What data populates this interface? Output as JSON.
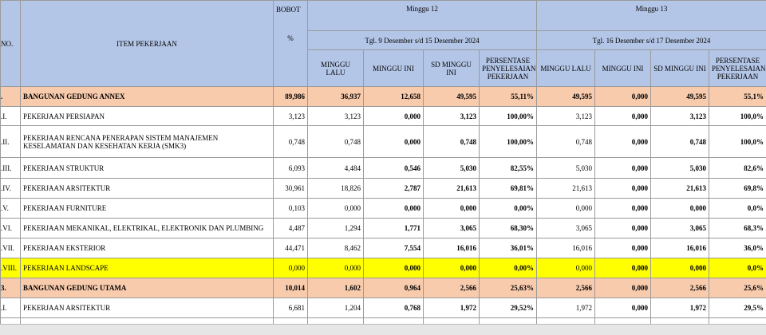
{
  "header": {
    "no": "NO.",
    "item": "ITEM PEKERJAAN",
    "bobot": "BOBOT",
    "bobot_unit": "%",
    "weeks": [
      {
        "title": "Minggu 12",
        "dates": "Tgl. 9 Desember  s/d 15 Desember 2024",
        "columns": [
          "MINGGU LALU",
          "MINGGU INI",
          "SD MINGGU INI",
          "PERSENTASE PENYELESAIAN PEKERJAAN"
        ]
      },
      {
        "title": "Minggu 13",
        "dates": "Tgl. 16 Desember  s/d 17 Desember 2024",
        "columns": [
          "MINGGU LALU",
          "MINGGU INI",
          "SD MINGGU INI",
          "PERSENTASE PENYELESAIAN PEKERJAAN"
        ]
      }
    ]
  },
  "rows": [
    {
      "no": ".",
      "item": "BANGUNAN GEDUNG ANNEX",
      "bobot": "89,986",
      "values": [
        "36,937",
        "12,658",
        "49,595",
        "55,11%",
        "49,595",
        "0,000",
        "49,595",
        "55,1%"
      ]
    },
    {
      "no": ".I.",
      "item": "PEKERJAAN PERSIAPAN",
      "bobot": "3,123",
      "values": [
        "3,123",
        "0,000",
        "3,123",
        "100,00%",
        "3,123",
        "0,000",
        "3,123",
        "100,0%"
      ]
    },
    {
      "no": ".II.",
      "item": " PEKERJAAN RENCANA PENERAPAN SISTEM MANAJEMEN KESELAMATAN DAN KESEHATAN KERJA (SMK3)",
      "bobot": "0,748",
      "values": [
        "0,748",
        "0,000",
        "0,748",
        "100,00%",
        "0,748",
        "0,000",
        "0,748",
        "100,0%"
      ]
    },
    {
      "no": ".III.",
      "item": "PEKERJAAN STRUKTUR",
      "bobot": "6,093",
      "values": [
        "4,484",
        "0,546",
        "5,030",
        "82,55%",
        "5,030",
        "0,000",
        "5,030",
        "82,6%"
      ]
    },
    {
      "no": ".IV.",
      "item": "PEKERJAAN ARSITEKTUR",
      "bobot": "30,961",
      "values": [
        "18,826",
        "2,787",
        "21,613",
        "69,81%",
        "21,613",
        "0,000",
        "21,613",
        "69,8%"
      ]
    },
    {
      "no": ".V.",
      "item": " PEKERJAAN FURNITURE",
      "bobot": "0,103",
      "values": [
        "0,000",
        "0,000",
        "0,000",
        "0,00%",
        "0,000",
        "0,000",
        "0,000",
        "0,0%"
      ]
    },
    {
      "no": ".VI.",
      "item": "PEKERJAAN MEKANIKAL, ELEKTRIKAL, ELEKTRONIK DAN PLUMBING",
      "bobot": "4,487",
      "values": [
        "1,294",
        "1,771",
        "3,065",
        "68,30%",
        "3,065",
        "0,000",
        "3,065",
        "68,3%"
      ]
    },
    {
      "no": ".VII.",
      "item": "PEKERJAAN EKSTERIOR",
      "bobot": "44,471",
      "values": [
        "8,462",
        "7,554",
        "16,016",
        "36,01%",
        "16,016",
        "0,000",
        "16,016",
        "36,0%"
      ]
    },
    {
      "no": ".VIII.",
      "item": "PEKERJAAN LANDSCAPE",
      "bobot": "0,000",
      "values": [
        "0,000",
        "0,000",
        "0,000",
        "0,00%",
        "0,000",
        "0,000",
        "0,000",
        "0,0%"
      ]
    },
    {
      "no": "3.",
      "item": "BANGUNAN GEDUNG UTAMA",
      "bobot": "10,014",
      "values": [
        "1,602",
        "0,964",
        "2,566",
        "25,63%",
        "2,566",
        "0,000",
        "2,566",
        "25,6%"
      ]
    },
    {
      "no": ".I.",
      "item": "PEKERJAAN ARSITEKTUR",
      "bobot": "6,681",
      "values": [
        "1,204",
        "0,768",
        "1,972",
        "29,52%",
        "1,972",
        "0,000",
        "1,972",
        "29,5%"
      ]
    }
  ]
}
